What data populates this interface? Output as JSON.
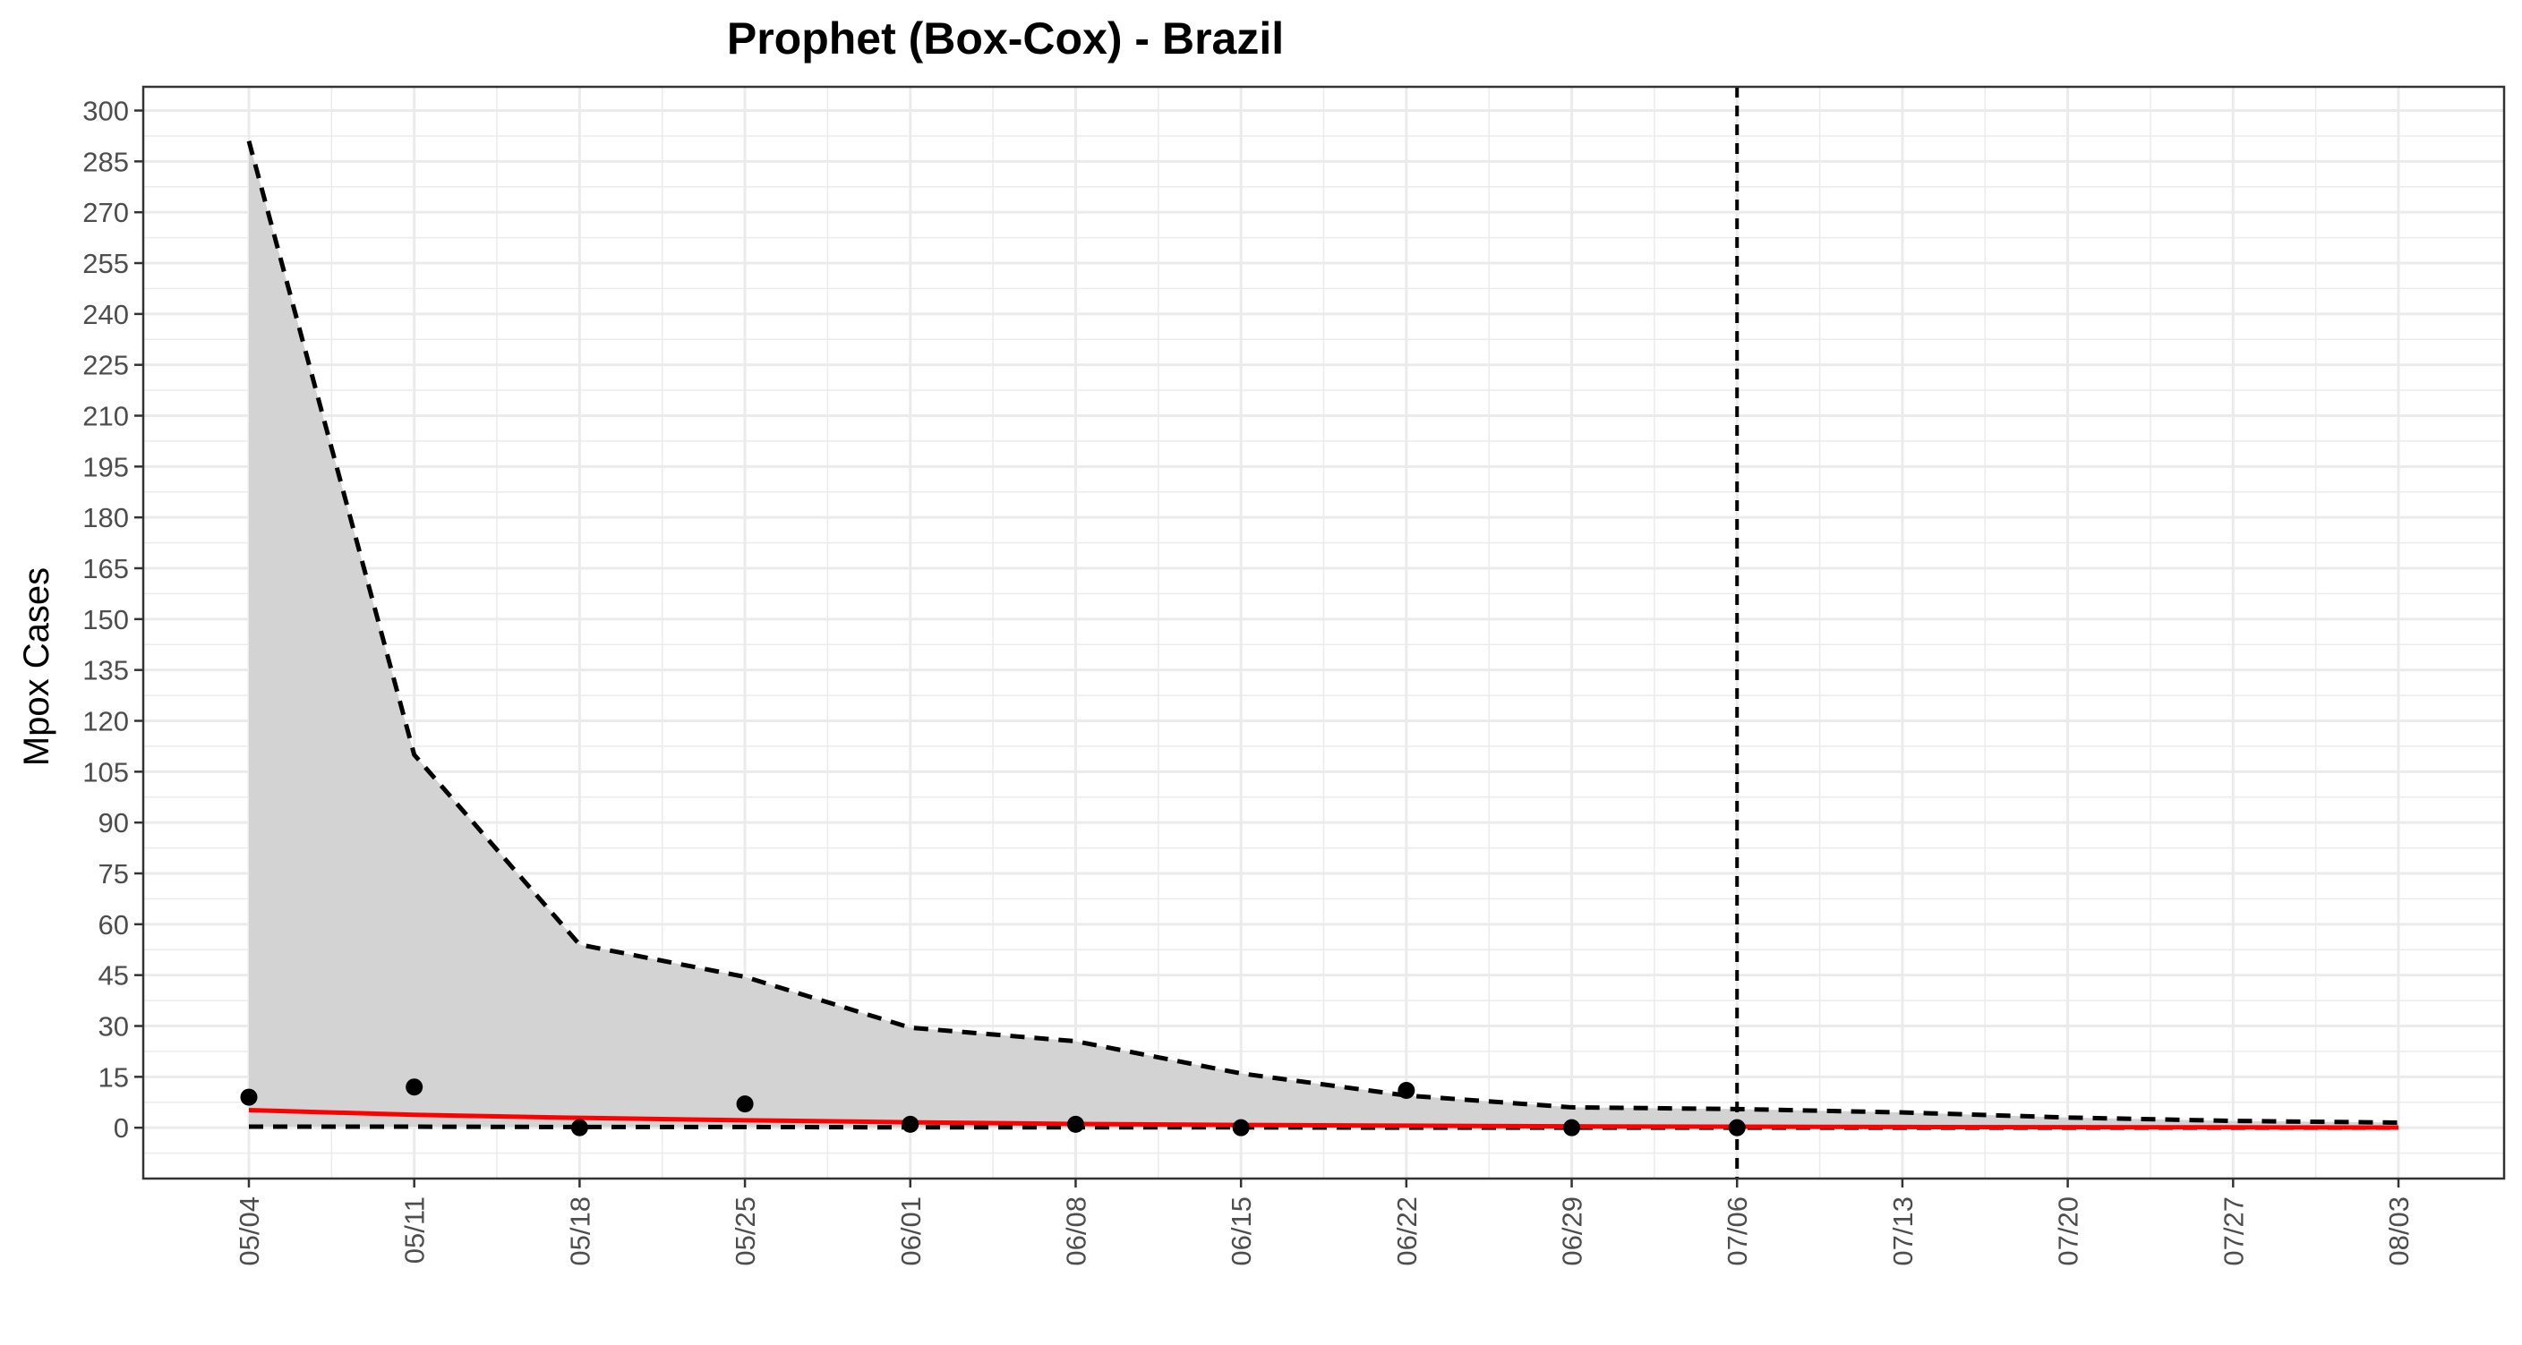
{
  "chart_data": {
    "type": "line",
    "title": "Prophet (Box-Cox) - Brazil",
    "xlabel": "",
    "ylabel": "Mpox Cases",
    "x_ticks": [
      "05/04",
      "05/11",
      "05/18",
      "05/25",
      "06/01",
      "06/08",
      "06/15",
      "06/22",
      "06/29",
      "07/06",
      "07/13",
      "07/20",
      "07/27",
      "08/03"
    ],
    "y_ticks": [
      0,
      15,
      30,
      45,
      60,
      75,
      90,
      105,
      120,
      135,
      150,
      165,
      180,
      195,
      210,
      225,
      240,
      255,
      270,
      285,
      300
    ],
    "ylim": [
      -15,
      307
    ],
    "xlim": [
      "05/04",
      "08/03"
    ],
    "grid": true,
    "legend": "none",
    "forecast_origin": "07/06",
    "colors": {
      "forecast_line": "#ff0000",
      "interval_fill": "#d3d3d3",
      "interval_bounds": "#000000",
      "observed_points": "#000000",
      "forecast_origin_line": "#000000",
      "grid": "#ebebeb",
      "panel_border": "#333333"
    },
    "series": [
      {
        "kind": "observed",
        "x": [
          "05/04",
          "05/11",
          "05/18",
          "05/25",
          "06/01",
          "06/08",
          "06/15",
          "06/22",
          "06/29",
          "07/06"
        ],
        "values": [
          9,
          12,
          0,
          7,
          1,
          1,
          0,
          11,
          0,
          0
        ]
      },
      {
        "kind": "forecast",
        "x": [
          "05/04",
          "05/11",
          "05/18",
          "05/25",
          "06/01",
          "06/08",
          "06/15",
          "06/22",
          "06/29",
          "07/06",
          "07/13",
          "07/20",
          "07/27",
          "08/03"
        ],
        "values": [
          5.2,
          3.8,
          2.9,
          2.2,
          1.6,
          1.1,
          0.8,
          0.6,
          0.4,
          0.3,
          0.2,
          0.15,
          0.1,
          0.05
        ]
      },
      {
        "kind": "upper_bound",
        "x": [
          "05/04",
          "05/11",
          "05/18",
          "05/25",
          "06/01",
          "06/08",
          "06/15",
          "06/22",
          "06/29",
          "07/06",
          "07/13",
          "07/20",
          "07/27",
          "08/03"
        ],
        "values": [
          291,
          110,
          54,
          44.5,
          29.5,
          25.5,
          16,
          9.5,
          6,
          5.5,
          4.5,
          3,
          2,
          1.5
        ]
      },
      {
        "kind": "lower_bound",
        "x": [
          "05/04",
          "05/11",
          "05/18",
          "05/25",
          "06/01",
          "06/08",
          "06/15",
          "06/22",
          "06/29",
          "07/06",
          "07/13",
          "07/20",
          "07/27",
          "08/03"
        ],
        "values": [
          0.3,
          0.3,
          0.2,
          0.2,
          0.1,
          0.1,
          0.1,
          0,
          0,
          0,
          0,
          0,
          0,
          0
        ]
      }
    ]
  }
}
